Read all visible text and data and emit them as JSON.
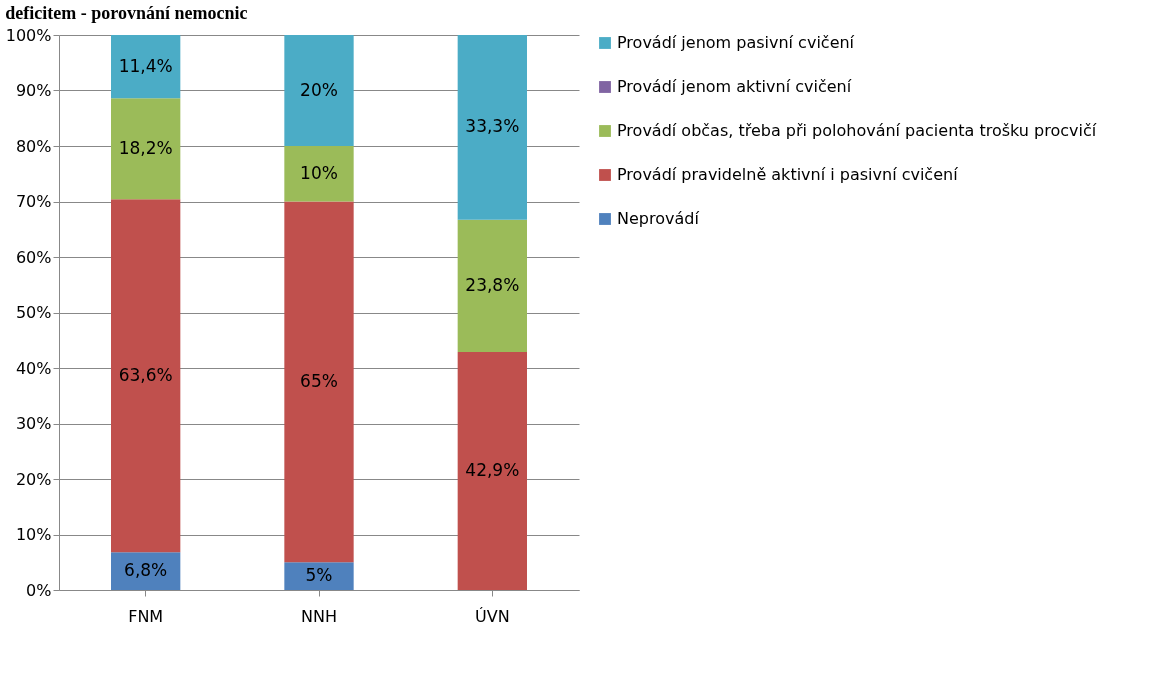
{
  "chart_data": {
    "type": "bar",
    "stacked": true,
    "title": "deficitem - porovnání nemocnic",
    "categories": [
      "FNM",
      "NNH",
      "ÚVN"
    ],
    "ylim": [
      0,
      100
    ],
    "yticks": [
      {
        "value": 0,
        "label": "0%"
      },
      {
        "value": 10,
        "label": "10%"
      },
      {
        "value": 20,
        "label": "20%"
      },
      {
        "value": 30,
        "label": "30%"
      },
      {
        "value": 40,
        "label": "40%"
      },
      {
        "value": 50,
        "label": "50%"
      },
      {
        "value": 60,
        "label": "60%"
      },
      {
        "value": 70,
        "label": "70%"
      },
      {
        "value": 80,
        "label": "80%"
      },
      {
        "value": 90,
        "label": "90%"
      },
      {
        "value": 100,
        "label": "100%"
      }
    ],
    "grid": "y",
    "legend": "right",
    "series": [
      {
        "name": "Neprovádí",
        "color": "#4f81bd",
        "values": [
          6.8,
          5,
          0
        ],
        "value_labels": [
          "6,8%",
          "5%",
          null
        ]
      },
      {
        "name": "Provádí pravidelně aktivní i pasivní cvičení",
        "color": "#c0504d",
        "values": [
          63.6,
          65,
          42.9
        ],
        "value_labels": [
          "63,6%",
          "65%",
          "42,9%"
        ]
      },
      {
        "name": "Provádí občas, třeba při polohování pacienta trošku procvičí",
        "color": "#9bbb59",
        "values": [
          18.2,
          10,
          23.8
        ],
        "value_labels": [
          "18,2%",
          "10%",
          "23,8%"
        ]
      },
      {
        "name": "Provádí jenom aktivní cvičení",
        "color": "#8064a2",
        "values": [
          0,
          0,
          0
        ],
        "value_labels": [
          null,
          null,
          null
        ]
      },
      {
        "name": "Provádí jenom pasivní cvičení",
        "color": "#4bacc6",
        "values": [
          11.4,
          20,
          33.3
        ],
        "value_labels": [
          "11,4%",
          "20%",
          "33,3%"
        ]
      }
    ]
  }
}
